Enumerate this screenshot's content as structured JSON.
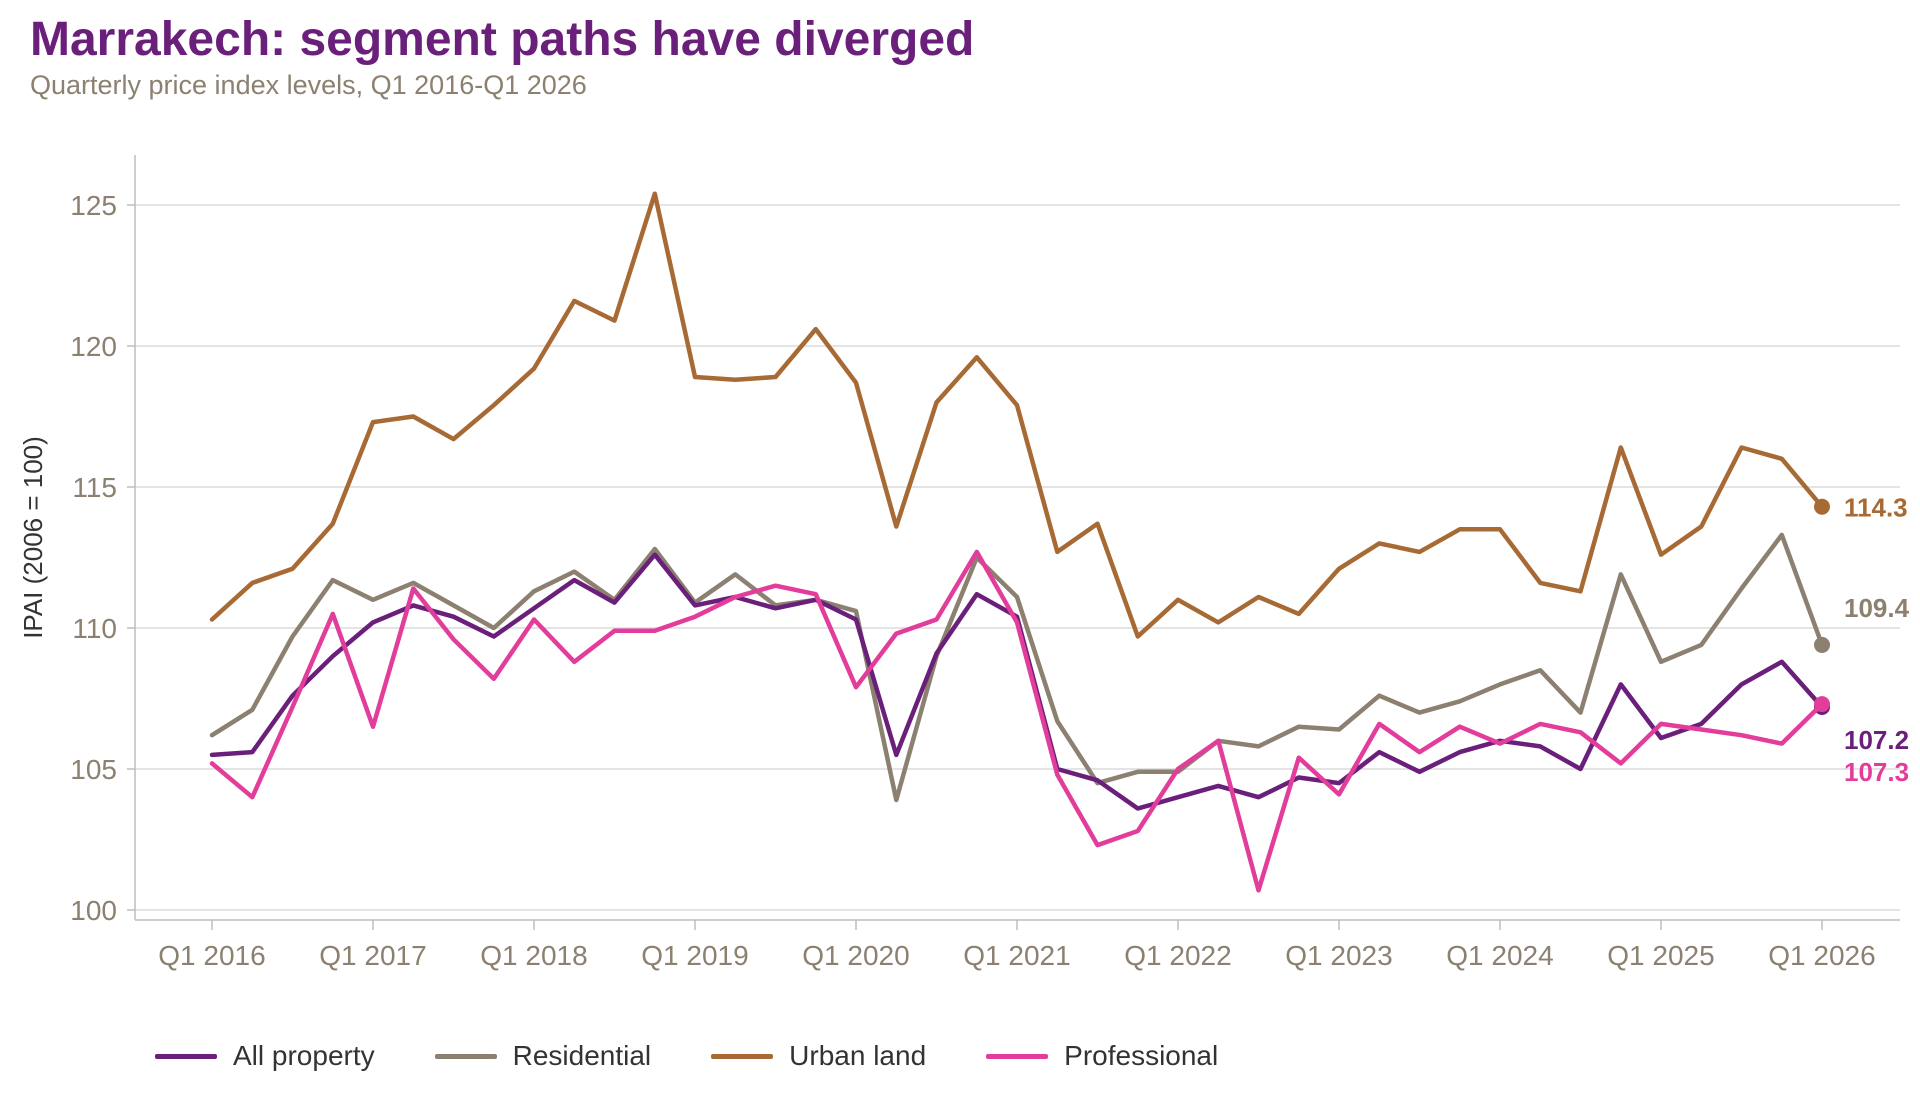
{
  "title": "Marrakech: segment paths have diverged",
  "subtitle": "Quarterly price index levels, Q1 2016-Q1 2026",
  "chart_data": {
    "type": "line",
    "title": "Marrakech: segment paths have diverged",
    "subtitle": "Quarterly price index levels, Q1 2016-Q1 2026",
    "xlabel": "",
    "ylabel": "IPAI (2006 = 100)",
    "ylim": [
      100,
      126.7
    ],
    "yticks": [
      100,
      105,
      110,
      115,
      120,
      125
    ],
    "xticks": [
      "Q1 2016",
      "Q1 2017",
      "Q1 2018",
      "Q1 2019",
      "Q1 2020",
      "Q1 2021",
      "Q1 2022",
      "Q1 2023",
      "Q1 2024",
      "Q1 2025",
      "Q1 2026"
    ],
    "x": [
      "Q1 2016",
      "Q2 2016",
      "Q3 2016",
      "Q4 2016",
      "Q1 2017",
      "Q2 2017",
      "Q3 2017",
      "Q4 2017",
      "Q1 2018",
      "Q2 2018",
      "Q3 2018",
      "Q4 2018",
      "Q1 2019",
      "Q2 2019",
      "Q3 2019",
      "Q4 2019",
      "Q1 2020",
      "Q2 2020",
      "Q3 2020",
      "Q4 2020",
      "Q1 2021",
      "Q2 2021",
      "Q3 2021",
      "Q4 2021",
      "Q1 2022",
      "Q2 2022",
      "Q3 2022",
      "Q4 2022",
      "Q1 2023",
      "Q2 2023",
      "Q3 2023",
      "Q4 2023",
      "Q1 2024",
      "Q2 2024",
      "Q3 2024",
      "Q4 2024",
      "Q1 2025",
      "Q2 2025",
      "Q3 2025",
      "Q4 2025",
      "Q1 2026"
    ],
    "grid": "horizontal",
    "legend": "bottom-left",
    "series": [
      {
        "name": "All property",
        "color": "#6a1f7a",
        "end_label": "107.2",
        "values": [
          105.5,
          105.6,
          107.6,
          109.0,
          110.2,
          110.8,
          110.4,
          109.7,
          110.7,
          111.7,
          110.9,
          112.6,
          110.8,
          111.1,
          110.7,
          111.0,
          110.3,
          105.5,
          109.1,
          111.2,
          110.4,
          105.0,
          104.6,
          103.6,
          104.0,
          104.4,
          104.0,
          104.7,
          104.5,
          105.6,
          104.9,
          105.6,
          106.0,
          105.8,
          105.0,
          108.0,
          106.1,
          106.6,
          108.0,
          108.8,
          107.2
        ]
      },
      {
        "name": "Residential",
        "color": "#8c8070",
        "end_label": "109.4",
        "values": [
          106.2,
          107.1,
          109.7,
          111.7,
          111.0,
          111.6,
          110.8,
          110.0,
          111.3,
          112.0,
          111.0,
          112.8,
          110.9,
          111.9,
          110.8,
          111.0,
          110.6,
          103.9,
          109.0,
          112.5,
          111.1,
          106.7,
          104.5,
          104.9,
          104.9,
          106.0,
          105.8,
          106.5,
          106.4,
          107.6,
          107.0,
          107.4,
          108.0,
          108.5,
          107.0,
          111.9,
          108.8,
          109.4,
          111.4,
          113.3,
          109.4
        ]
      },
      {
        "name": "Urban land",
        "color": "#a86a34",
        "end_label": "114.3",
        "values": [
          110.3,
          111.6,
          112.1,
          113.7,
          117.3,
          117.5,
          116.7,
          117.9,
          119.2,
          121.6,
          120.9,
          125.4,
          118.9,
          118.8,
          118.9,
          120.6,
          118.7,
          113.6,
          118.0,
          119.6,
          117.9,
          112.7,
          113.7,
          109.7,
          111.0,
          110.2,
          111.1,
          110.5,
          112.1,
          113.0,
          112.7,
          113.5,
          113.5,
          111.6,
          111.3,
          116.4,
          112.6,
          113.6,
          116.4,
          116.0,
          114.3
        ]
      },
      {
        "name": "Professional",
        "color": "#e23d9b",
        "end_label": "107.3",
        "values": [
          105.2,
          104.0,
          107.2,
          110.5,
          106.5,
          111.4,
          109.6,
          108.2,
          110.3,
          108.8,
          109.9,
          109.9,
          110.4,
          111.1,
          111.5,
          111.2,
          107.9,
          109.8,
          110.3,
          112.7,
          110.2,
          104.8,
          102.3,
          102.8,
          105.0,
          106.0,
          100.7,
          105.4,
          104.1,
          106.6,
          105.6,
          106.5,
          105.9,
          106.6,
          106.3,
          105.2,
          106.6,
          106.4,
          106.2,
          105.9,
          107.3
        ]
      }
    ]
  },
  "legend": [
    {
      "label": "All property",
      "color": "#6a1f7a"
    },
    {
      "label": "Residential",
      "color": "#8c8070"
    },
    {
      "label": "Urban land",
      "color": "#a86a34"
    },
    {
      "label": "Professional",
      "color": "#e23d9b"
    }
  ]
}
